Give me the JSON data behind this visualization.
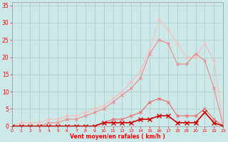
{
  "bg_color": "#cce8e8",
  "grid_color": "#aacccc",
  "line_color_dark": "#cc0000",
  "line_color_mid1": "#ee6666",
  "line_color_mid2": "#ee8888",
  "line_color_light": "#ffbbbb",
  "xlabel": "Vent moyen/en rafales ( km/h )",
  "ylabel_ticks": [
    0,
    5,
    10,
    15,
    20,
    25,
    30,
    35
  ],
  "xlabel_ticks": [
    0,
    1,
    2,
    3,
    4,
    5,
    6,
    7,
    8,
    9,
    10,
    11,
    12,
    13,
    14,
    15,
    16,
    17,
    18,
    19,
    20,
    21,
    22,
    23
  ],
  "xlim": [
    0,
    23
  ],
  "ylim": [
    0,
    36
  ],
  "s1_x": [
    0,
    1,
    2,
    3,
    4,
    5,
    6,
    7,
    8,
    9,
    10,
    11,
    12,
    13,
    14,
    15,
    16,
    17,
    18,
    19,
    20,
    21,
    22,
    23
  ],
  "s1_y": [
    0,
    0,
    0,
    0,
    0,
    0,
    0,
    0,
    0,
    0,
    1,
    1,
    1,
    1,
    2,
    2,
    3,
    3,
    1,
    1,
    1,
    4,
    1,
    0
  ],
  "s2_x": [
    0,
    1,
    2,
    3,
    4,
    5,
    6,
    7,
    8,
    9,
    10,
    11,
    12,
    13,
    14,
    15,
    16,
    17,
    18,
    19,
    20,
    21,
    22,
    23
  ],
  "s2_y": [
    0,
    0,
    0,
    0,
    0,
    0,
    0,
    0,
    0,
    0,
    1,
    2,
    2,
    3,
    4,
    7,
    8,
    7,
    3,
    3,
    3,
    5,
    2,
    0
  ],
  "s3_x": [
    0,
    1,
    2,
    3,
    4,
    5,
    6,
    7,
    8,
    9,
    10,
    11,
    12,
    13,
    14,
    15,
    16,
    17,
    18,
    19,
    20,
    21,
    22,
    23
  ],
  "s3_y": [
    0,
    0,
    0,
    0,
    1,
    1,
    2,
    2,
    3,
    4,
    5,
    7,
    9,
    11,
    14,
    21,
    25,
    24,
    18,
    18,
    21,
    19,
    11,
    0
  ],
  "s4_x": [
    0,
    1,
    2,
    3,
    4,
    5,
    6,
    7,
    8,
    9,
    10,
    11,
    12,
    13,
    14,
    15,
    16,
    17,
    18,
    19,
    20,
    21,
    22,
    23
  ],
  "s4_y": [
    0,
    1,
    1,
    1,
    2,
    2,
    3,
    3,
    4,
    5,
    6,
    8,
    10,
    13,
    16,
    22,
    31,
    28,
    24,
    20,
    20,
    24,
    19,
    0
  ]
}
